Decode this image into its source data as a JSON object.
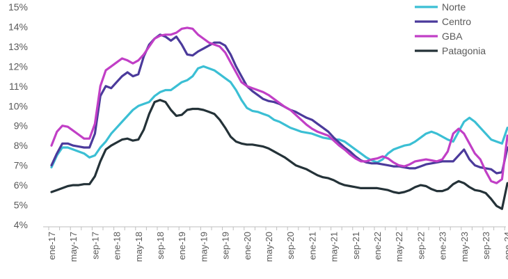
{
  "chart_data": {
    "type": "line",
    "title": "",
    "xlabel": "",
    "ylabel": "",
    "ylim": [
      4,
      15
    ],
    "y_ticks": [
      "4%",
      "5%",
      "6%",
      "7%",
      "8%",
      "9%",
      "10%",
      "11%",
      "12%",
      "13%",
      "14%",
      "15%"
    ],
    "x_tick_labels": [
      "ene-17",
      "may-17",
      "sep-17",
      "ene-18",
      "may-18",
      "sep-18",
      "ene-19",
      "may-19",
      "sep-19",
      "ene-20",
      "may-20",
      "sep-20",
      "ene-21",
      "may-21",
      "sep-21",
      "ene-22",
      "may-22",
      "sep-22",
      "ene-23",
      "may-23",
      "sep-23",
      "ene-24"
    ],
    "grid": false,
    "legend_position": "top-right",
    "x_start": "2017-01",
    "series": [
      {
        "name": "Norte",
        "color": "#3BBFD4",
        "values": [
          6.9,
          7.5,
          7.9,
          7.9,
          7.8,
          7.7,
          7.6,
          7.4,
          7.5,
          7.9,
          8.2,
          8.6,
          8.9,
          9.2,
          9.5,
          9.8,
          10.0,
          10.1,
          10.2,
          10.5,
          10.7,
          10.8,
          10.8,
          11.0,
          11.2,
          11.3,
          11.5,
          11.9,
          12.0,
          11.9,
          11.8,
          11.6,
          11.4,
          11.2,
          10.8,
          10.3,
          9.9,
          9.75,
          9.7,
          9.6,
          9.5,
          9.3,
          9.2,
          9.05,
          8.9,
          8.8,
          8.7,
          8.65,
          8.6,
          8.5,
          8.4,
          8.35,
          8.3,
          8.3,
          8.2,
          8.0,
          7.8,
          7.6,
          7.4,
          7.25,
          7.15,
          7.3,
          7.6,
          7.8,
          7.9,
          8.0,
          8.05,
          8.2,
          8.4,
          8.6,
          8.7,
          8.6,
          8.45,
          8.3,
          8.2,
          8.7,
          9.2,
          9.4,
          9.2,
          8.9,
          8.6,
          8.3,
          8.2,
          8.1,
          8.9
        ]
      },
      {
        "name": "Centro",
        "color": "#4B3A9B",
        "values": [
          7.0,
          7.6,
          8.1,
          8.1,
          8.0,
          7.95,
          7.9,
          7.9,
          8.6,
          10.5,
          11.0,
          10.9,
          11.2,
          11.5,
          11.7,
          11.5,
          11.6,
          12.5,
          13.1,
          13.4,
          13.6,
          13.5,
          13.3,
          13.5,
          13.1,
          12.6,
          12.55,
          12.75,
          12.9,
          13.05,
          13.2,
          13.2,
          13.05,
          12.6,
          12.0,
          11.5,
          11.0,
          10.75,
          10.55,
          10.35,
          10.25,
          10.2,
          10.1,
          9.95,
          9.8,
          9.7,
          9.55,
          9.4,
          9.3,
          9.1,
          8.9,
          8.7,
          8.4,
          8.15,
          7.9,
          7.7,
          7.45,
          7.25,
          7.15,
          7.1,
          7.1,
          7.05,
          7.0,
          6.95,
          6.95,
          6.9,
          6.85,
          6.85,
          6.95,
          7.05,
          7.1,
          7.15,
          7.2,
          7.2,
          7.2,
          7.5,
          7.8,
          7.3,
          7.0,
          6.9,
          6.85,
          6.8,
          6.6,
          6.65,
          7.9
        ]
      },
      {
        "name": "GBA",
        "color": "#C13FC6",
        "values": [
          8.0,
          8.7,
          9.0,
          8.95,
          8.75,
          8.55,
          8.35,
          8.35,
          9.1,
          11.0,
          11.8,
          12.0,
          12.2,
          12.4,
          12.3,
          12.15,
          12.3,
          12.6,
          13.0,
          13.4,
          13.55,
          13.6,
          13.6,
          13.7,
          13.9,
          13.95,
          13.9,
          13.6,
          13.4,
          13.2,
          13.1,
          13.0,
          12.7,
          12.2,
          11.7,
          11.2,
          11.0,
          10.9,
          10.8,
          10.7,
          10.55,
          10.35,
          10.15,
          9.95,
          9.8,
          9.55,
          9.3,
          9.05,
          8.85,
          8.7,
          8.6,
          8.5,
          8.25,
          8.0,
          7.8,
          7.55,
          7.35,
          7.2,
          7.2,
          7.3,
          7.35,
          7.45,
          7.35,
          7.15,
          7.0,
          6.95,
          7.05,
          7.2,
          7.25,
          7.3,
          7.25,
          7.2,
          7.3,
          7.7,
          8.6,
          8.85,
          8.6,
          8.1,
          7.6,
          7.3,
          6.7,
          6.2,
          6.1,
          6.3,
          8.5
        ]
      },
      {
        "name": "Patagonia",
        "color": "#243238",
        "values": [
          5.65,
          5.75,
          5.85,
          5.95,
          6.0,
          6.0,
          6.05,
          6.05,
          6.45,
          7.2,
          7.8,
          8.0,
          8.15,
          8.3,
          8.35,
          8.25,
          8.3,
          8.8,
          9.6,
          10.2,
          10.3,
          10.2,
          9.8,
          9.5,
          9.55,
          9.8,
          9.85,
          9.85,
          9.8,
          9.7,
          9.6,
          9.3,
          8.9,
          8.45,
          8.2,
          8.1,
          8.05,
          8.05,
          8.0,
          7.95,
          7.85,
          7.7,
          7.55,
          7.4,
          7.2,
          7.0,
          6.9,
          6.8,
          6.65,
          6.5,
          6.4,
          6.35,
          6.25,
          6.1,
          6.0,
          5.95,
          5.9,
          5.85,
          5.85,
          5.85,
          5.85,
          5.8,
          5.75,
          5.65,
          5.6,
          5.65,
          5.75,
          5.9,
          6.0,
          5.95,
          5.8,
          5.7,
          5.7,
          5.8,
          6.05,
          6.2,
          6.1,
          5.9,
          5.75,
          5.7,
          5.6,
          5.3,
          4.95,
          4.8,
          6.1
        ]
      }
    ]
  }
}
